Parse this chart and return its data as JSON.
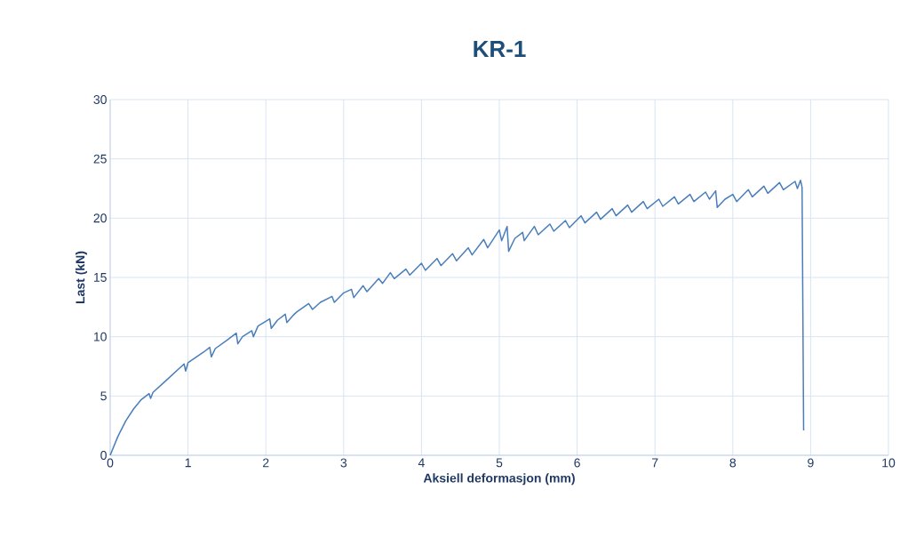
{
  "chart_data": {
    "type": "line",
    "title": "KR-1",
    "xlabel": "Aksiell deformasjon (mm)",
    "ylabel": "Last (kN)",
    "xlim": [
      0,
      10
    ],
    "ylim": [
      0,
      30
    ],
    "xticks": [
      0,
      1,
      2,
      3,
      4,
      5,
      6,
      7,
      8,
      9,
      10
    ],
    "yticks": [
      0,
      5,
      10,
      15,
      20,
      25,
      30
    ],
    "grid": true,
    "series": [
      {
        "color": "#4a7ebb",
        "x": [
          0,
          0.1,
          0.2,
          0.3,
          0.4,
          0.5,
          0.52,
          0.55,
          0.7,
          0.9,
          0.95,
          0.97,
          1.0,
          1.2,
          1.28,
          1.3,
          1.35,
          1.5,
          1.62,
          1.64,
          1.7,
          1.82,
          1.84,
          1.9,
          2.05,
          2.07,
          2.15,
          2.25,
          2.27,
          2.35,
          2.4,
          2.55,
          2.6,
          2.7,
          2.85,
          2.88,
          3.0,
          3.1,
          3.13,
          3.25,
          3.3,
          3.45,
          3.5,
          3.6,
          3.65,
          3.8,
          3.85,
          4.0,
          4.05,
          4.2,
          4.25,
          4.4,
          4.45,
          4.6,
          4.65,
          4.8,
          4.85,
          5.0,
          5.03,
          5.1,
          5.12,
          5.2,
          5.3,
          5.32,
          5.45,
          5.5,
          5.65,
          5.7,
          5.85,
          5.9,
          6.05,
          6.1,
          6.25,
          6.3,
          6.45,
          6.5,
          6.65,
          6.7,
          6.85,
          6.9,
          7.05,
          7.1,
          7.25,
          7.3,
          7.45,
          7.5,
          7.65,
          7.7,
          7.78,
          7.8,
          7.9,
          8.0,
          8.05,
          8.2,
          8.25,
          8.4,
          8.45,
          8.6,
          8.65,
          8.8,
          8.83,
          8.87,
          8.89,
          8.91
        ],
        "values": [
          0,
          1.6,
          2.9,
          3.9,
          4.7,
          5.2,
          4.8,
          5.3,
          6.2,
          7.4,
          7.7,
          7.1,
          7.8,
          8.7,
          9.1,
          8.3,
          9.0,
          9.7,
          10.3,
          9.4,
          10.0,
          10.5,
          10.0,
          10.9,
          11.5,
          10.7,
          11.4,
          11.9,
          11.2,
          11.8,
          12.1,
          12.8,
          12.3,
          12.9,
          13.4,
          12.9,
          13.7,
          14.0,
          13.3,
          14.3,
          13.8,
          14.9,
          14.5,
          15.4,
          14.9,
          15.7,
          15.2,
          16.2,
          15.6,
          16.6,
          16.0,
          17.0,
          16.4,
          17.5,
          16.9,
          18.2,
          17.5,
          19.0,
          18.1,
          19.3,
          17.2,
          18.3,
          18.8,
          18.1,
          19.3,
          18.6,
          19.5,
          18.9,
          19.8,
          19.2,
          20.2,
          19.6,
          20.5,
          19.9,
          20.8,
          20.2,
          21.1,
          20.5,
          21.4,
          20.8,
          21.6,
          21.0,
          21.8,
          21.2,
          22.0,
          21.4,
          22.2,
          21.6,
          22.3,
          20.9,
          21.6,
          22.0,
          21.4,
          22.4,
          21.8,
          22.7,
          22.1,
          23.0,
          22.4,
          23.1,
          22.5,
          23.2,
          22.6,
          2.1
        ]
      }
    ]
  }
}
